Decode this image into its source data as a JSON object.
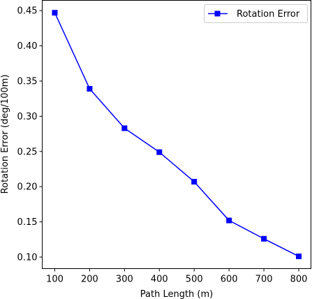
{
  "chart_data": {
    "type": "line",
    "xlabel": "Path Length (m)",
    "ylabel": "Rotation Error (deg/100m)",
    "x": [
      100,
      200,
      300,
      400,
      500,
      600,
      700,
      800
    ],
    "series": [
      {
        "name": "Rotation Error",
        "values": [
          0.447,
          0.339,
          0.283,
          0.249,
          0.207,
          0.152,
          0.126,
          0.101
        ],
        "color": "#0000ff",
        "marker": "square"
      }
    ],
    "xticks": [
      100,
      200,
      300,
      400,
      500,
      600,
      700,
      800
    ],
    "xtick_labels": [
      "100",
      "200",
      "300",
      "400",
      "500",
      "600",
      "700",
      "800"
    ],
    "yticks": [
      0.1,
      0.15,
      0.2,
      0.25,
      0.3,
      0.35,
      0.4,
      0.45
    ],
    "ytick_labels": [
      "0.10",
      "0.15",
      "0.20",
      "0.25",
      "0.30",
      "0.35",
      "0.40",
      "0.45"
    ],
    "xlim": [
      64,
      835
    ],
    "ylim": [
      0.0836,
      0.4646
    ],
    "grid": false,
    "legend_position": "upper right"
  }
}
